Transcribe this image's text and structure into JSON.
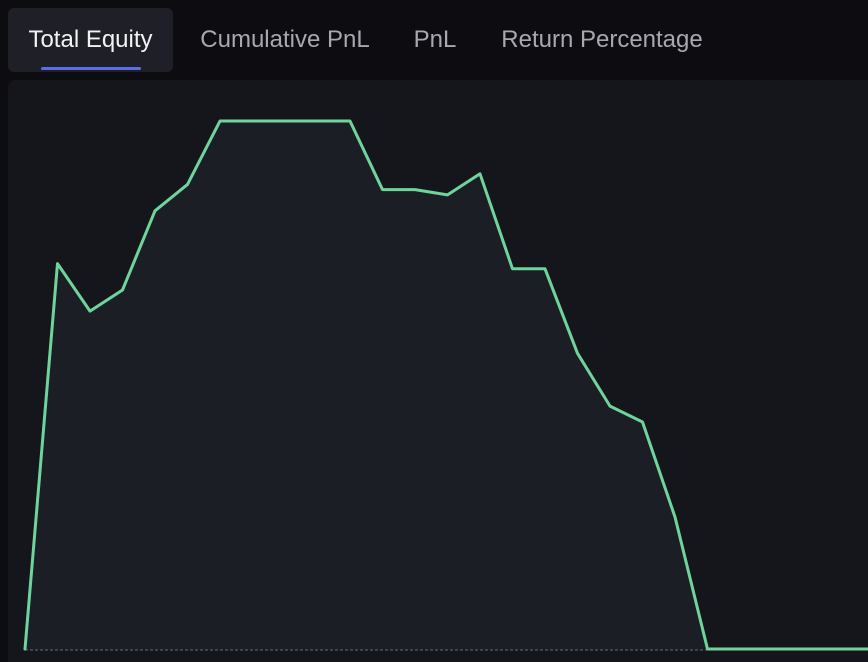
{
  "tabs": [
    {
      "label": "Total Equity",
      "active": true
    },
    {
      "label": "Cumulative PnL",
      "active": false
    },
    {
      "label": "PnL",
      "active": false
    },
    {
      "label": "Return Percentage",
      "active": false
    }
  ],
  "colors": {
    "line": "#6fd49c",
    "area": "#1b1f25",
    "baseline": "#a0a0a8",
    "accent": "#5b6ee8"
  },
  "chart_data": {
    "type": "area",
    "x": [
      0,
      1,
      2,
      3,
      4,
      5,
      6,
      7,
      8,
      9,
      10,
      11,
      12,
      13,
      14,
      15,
      16,
      17,
      18,
      19,
      20,
      21,
      22,
      23,
      24,
      25,
      26
    ],
    "y": [
      0,
      73,
      64,
      68,
      83,
      88,
      100,
      100,
      100,
      100,
      100,
      87,
      87,
      86,
      90,
      72,
      72,
      56,
      46,
      43,
      25,
      0,
      0,
      0,
      0,
      0,
      0
    ],
    "ylim": [
      0,
      100
    ],
    "grid": false,
    "legend": false
  }
}
